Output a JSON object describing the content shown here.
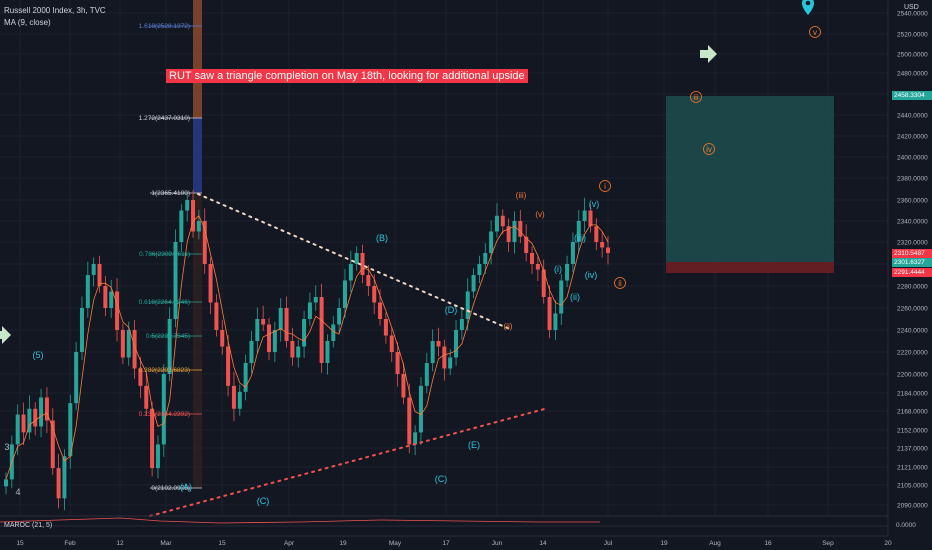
{
  "header": {
    "symbol_line": "Russell 2000 Index, 3h, TVC",
    "ma_line": "MA (9, close)",
    "currency": "USD",
    "indicator": "MAROC (21, 5)"
  },
  "annotation_text": "RUT saw a triangle completion on May 18th, looking for additional upside",
  "colors": {
    "background": "#131722",
    "up": "#26a69a",
    "down": "#ef5350",
    "ma": "#ff7a3c",
    "wave_teal": "#26c6da",
    "wave_orange": "#f57c2b",
    "fib_orange": "#e9a23b",
    "target_box": "#1f4e4f",
    "stop_box": "#6b1f24",
    "label_red": "#f23645",
    "label_green": "#26a69a"
  },
  "chart_data": {
    "type": "candlestick",
    "x_ticks": [
      "15",
      "Feb",
      "12",
      "Mar",
      "15",
      "Apr",
      "19",
      "May",
      "17",
      "Jun",
      "14",
      "Jul",
      "19",
      "Aug",
      "16",
      "Sep",
      "20"
    ],
    "y_ticks": [
      2090.0,
      2105.0,
      2121.0,
      2137.0,
      2152.0,
      2168.0,
      2184.0,
      2200.0,
      2220.0,
      2240.0,
      2260.0,
      2280.0,
      2300.0,
      2320.0,
      2340.0,
      2360.0,
      2380.0,
      2400.0,
      2420.0,
      2440.0,
      2460.0,
      2480.0,
      2500.0,
      2520.0,
      2540.0
    ],
    "y_tick_labels": [
      "2090.0000",
      "2105.0000",
      "2121.0000",
      "2137.0000",
      "2152.0000",
      "2168.0000",
      "2184.0000",
      "2200.0000",
      "2220.0000",
      "2240.0000",
      "2260.0000",
      "2280.0000",
      "2300.0000",
      "2320.0000",
      "2340.0000",
      "2360.0000",
      "2380.0000",
      "2400.0000",
      "2420.0000",
      "2440.0000",
      "2460.0000",
      "2480.0000",
      "2500.0000",
      "2520.0000",
      "2540.0000"
    ],
    "price_tags": [
      {
        "label": "2458.3304",
        "color": "#26a69a"
      },
      {
        "label": "2310.5487",
        "color": "#f23645"
      },
      {
        "label": "2301.6327",
        "color": "#26a69a"
      },
      {
        "label": "2291.4444",
        "color": "#f23645"
      }
    ],
    "fib_levels": [
      {
        "label": "1.618(2528.1372)",
        "color": "#5b7fd9"
      },
      {
        "label": "1.272(2437.0310)",
        "color": "#d1d4dc"
      },
      {
        "label": "1(2365.4100)",
        "color": "#d1d4dc"
      },
      {
        "label": "0.786(2309.0611)",
        "color": "#26a69a"
      },
      {
        "label": "0.618(2264.8246)",
        "color": "#26a69a"
      },
      {
        "label": "0.5(2233.7545)",
        "color": "#26a69a"
      },
      {
        "label": "0.382(2202.6823)",
        "color": "#e9a23b"
      },
      {
        "label": "0.236(2164.2392)",
        "color": "#ef5350"
      },
      {
        "label": "0(2102.0976)",
        "color": "#d1d4dc"
      }
    ],
    "maroc_tick": "0.0000",
    "wave_labels_teal": [
      "(5)",
      "(A)",
      "(C)",
      "(B)",
      "(D)",
      "(E)",
      "(C)",
      "(i)",
      "(ii)",
      "(iii)",
      "(iv)",
      "(v)"
    ],
    "wave_labels_orange": [
      "(iii)",
      "(v)",
      "(ii)",
      "i",
      "ii",
      "iii",
      "iv",
      "v"
    ],
    "left_labels": [
      "3",
      "4"
    ],
    "close_series": [
      2110,
      2140,
      2165,
      2150,
      2170,
      2155,
      2180,
      2160,
      2120,
      2095,
      2130,
      2175,
      2220,
      2260,
      2290,
      2300,
      2280,
      2260,
      2275,
      2240,
      2215,
      2240,
      2205,
      2190,
      2170,
      2120,
      2140,
      2200,
      2250,
      2320,
      2350,
      2360,
      2330,
      2340,
      2300,
      2265,
      2240,
      2225,
      2190,
      2170,
      2185,
      2210,
      2230,
      2250,
      2245,
      2220,
      2240,
      2260,
      2230,
      2215,
      2225,
      2250,
      2265,
      2270,
      2210,
      2230,
      2245,
      2260,
      2285,
      2300,
      2310,
      2290,
      2280,
      2265,
      2250,
      2235,
      2220,
      2200,
      2180,
      2140,
      2150,
      2190,
      2210,
      2230,
      2225,
      2205,
      2215,
      2240,
      2250,
      2275,
      2290,
      2300,
      2310,
      2330,
      2345,
      2335,
      2320,
      2340,
      2325,
      2310,
      2300,
      2295,
      2270,
      2240,
      2255,
      2285,
      2300,
      2320,
      2340,
      2350,
      2335,
      2320,
      2315,
      2310
    ]
  }
}
